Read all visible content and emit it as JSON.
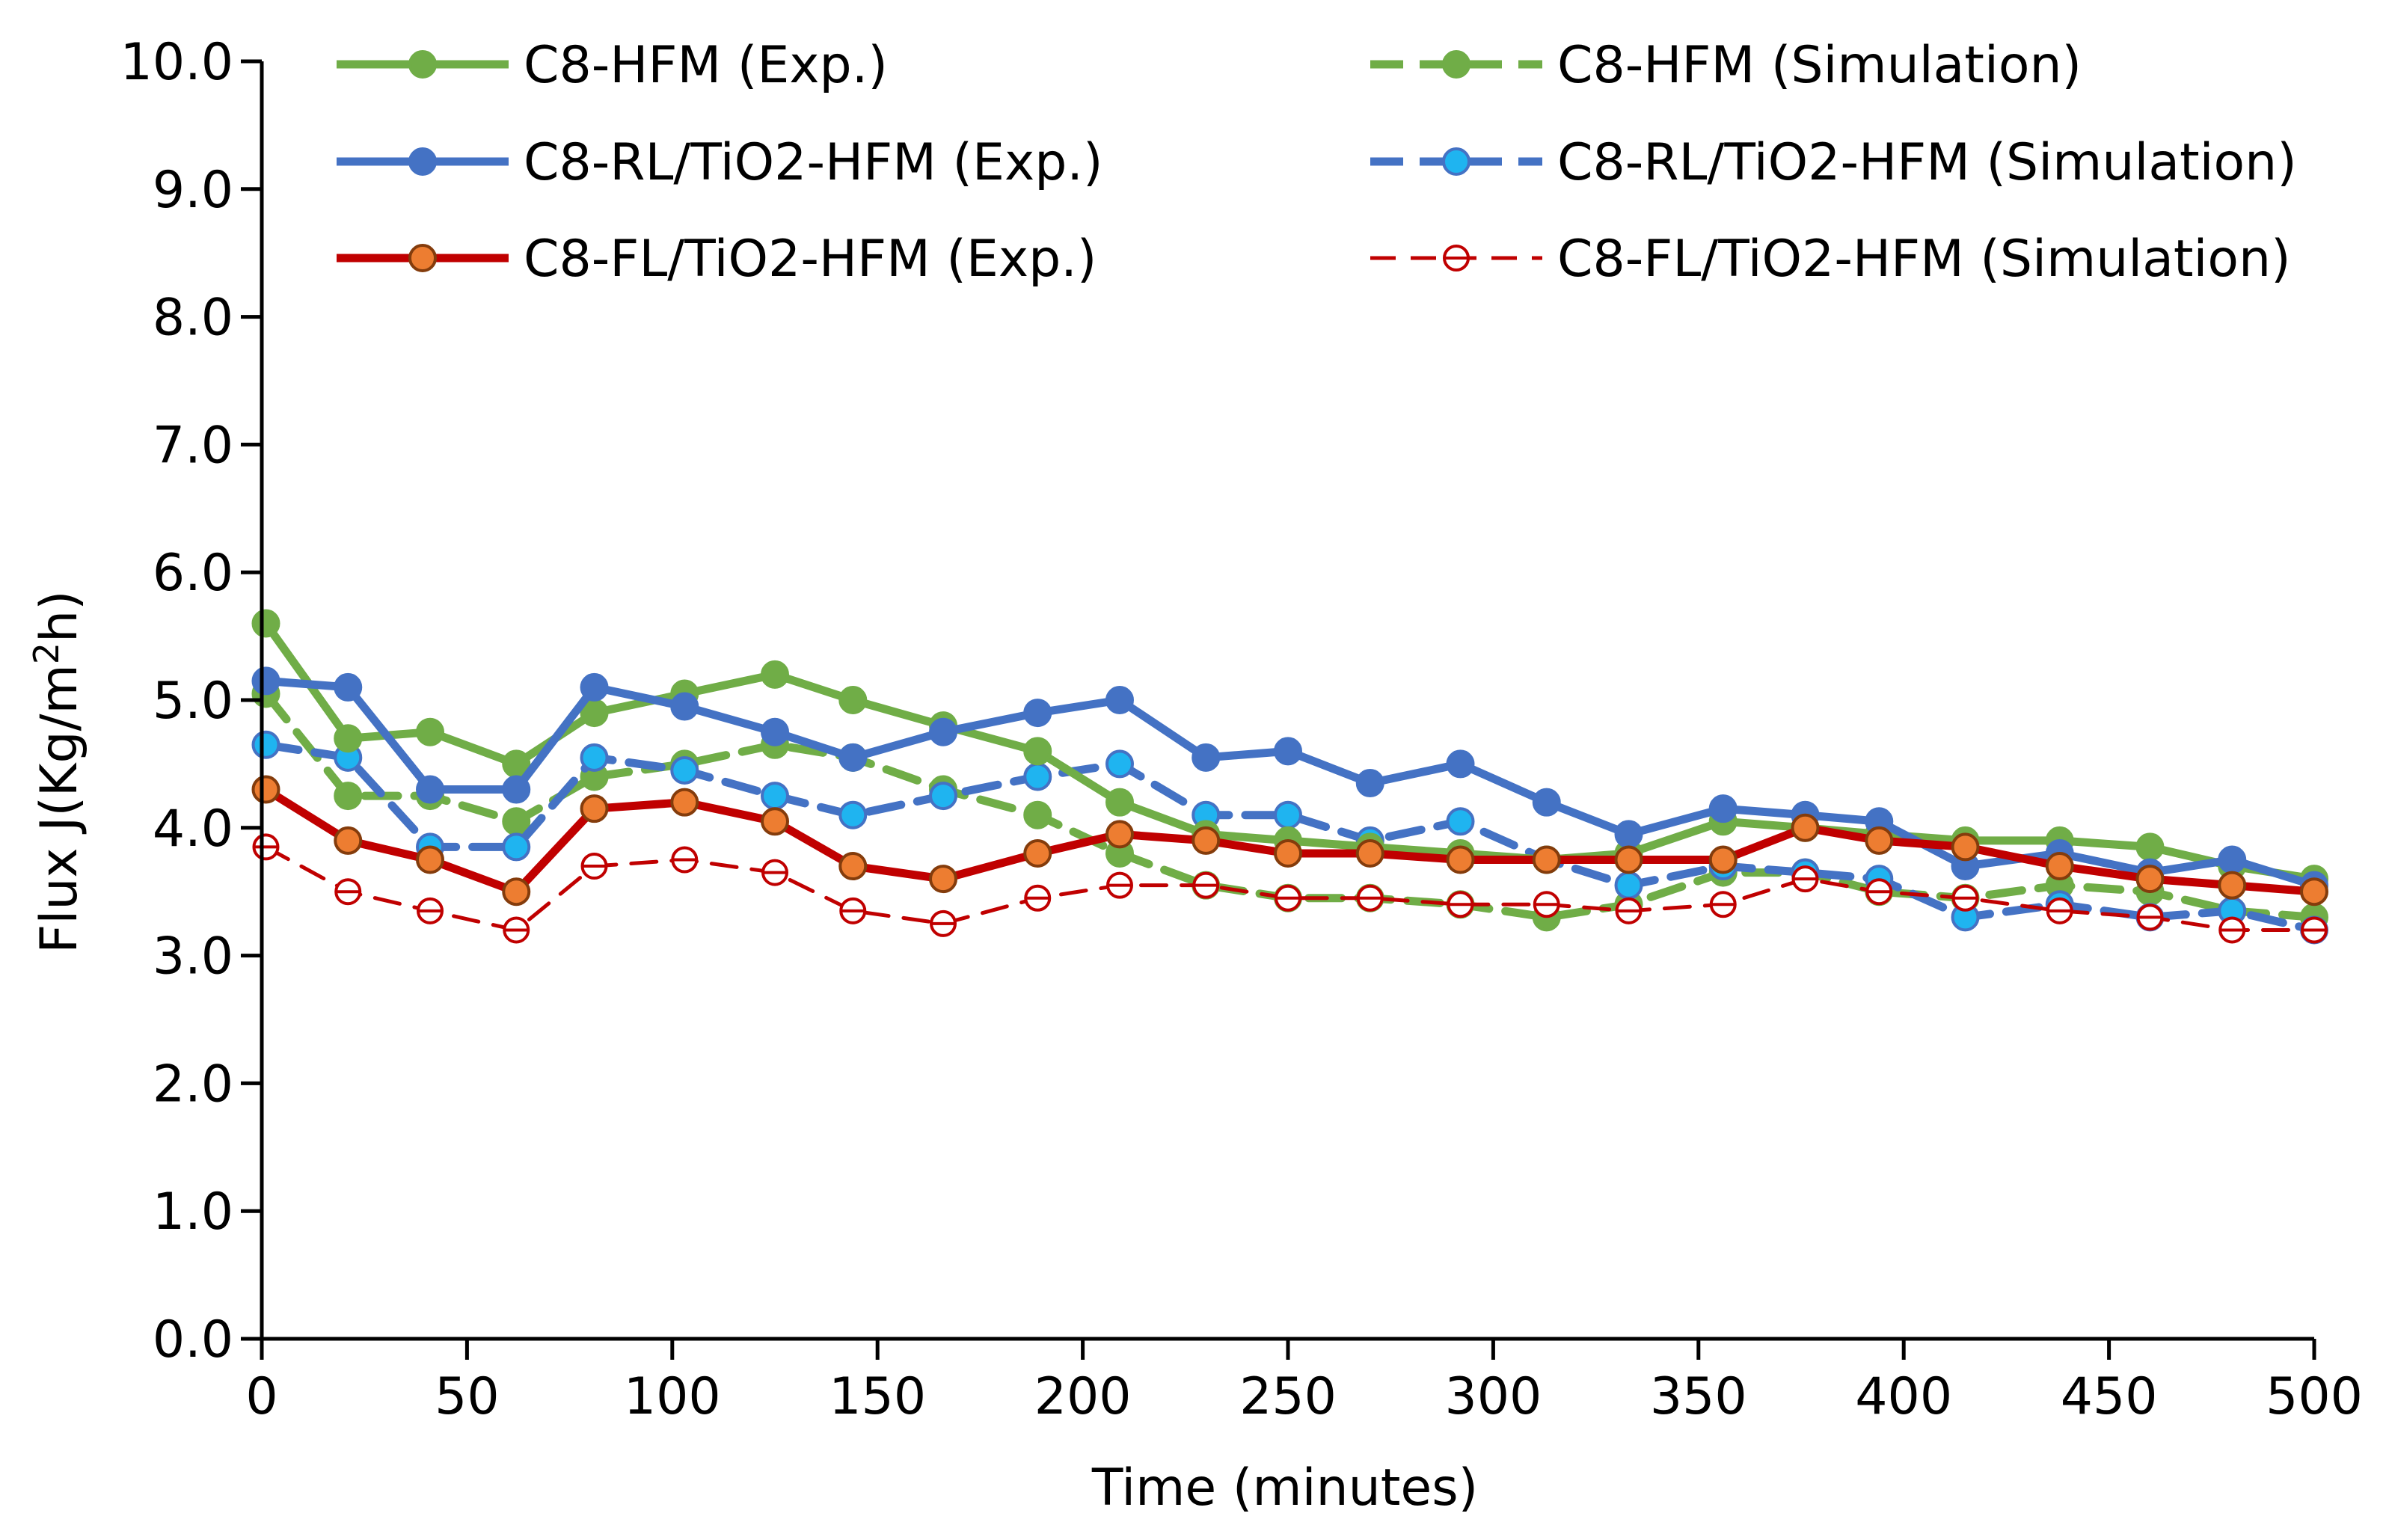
{
  "chart_data": {
    "type": "line",
    "title": "",
    "xlabel": "Time (minutes)",
    "ylabel": "Flux J(Kg/m²h)",
    "ylabel_base": "Flux J(Kg/m",
    "ylabel_sup": "2",
    "ylabel_end": "h)",
    "xlim": [
      0,
      500
    ],
    "ylim": [
      0,
      10
    ],
    "xticks": [
      "0",
      "50",
      "100",
      "150",
      "200",
      "250",
      "300",
      "350",
      "400",
      "450",
      "500"
    ],
    "yticks": [
      "0.0",
      "1.0",
      "2.0",
      "3.0",
      "4.0",
      "5.0",
      "6.0",
      "7.0",
      "8.0",
      "9.0",
      "10.0"
    ],
    "grid": false,
    "legend_position": "top",
    "x": [
      1,
      21,
      41,
      62,
      81,
      103,
      125,
      144,
      166,
      189,
      209,
      230,
      250,
      270,
      292,
      313,
      333,
      356,
      376,
      394,
      415,
      438,
      460,
      480,
      500
    ],
    "series": [
      {
        "name": "C8-HFM (Exp.)",
        "color": "#70ad47",
        "dash": "solid",
        "marker_fill": "#70ad47",
        "values": [
          5.6,
          4.7,
          4.75,
          4.5,
          4.9,
          5.05,
          5.2,
          5.0,
          4.8,
          4.6,
          4.2,
          3.95,
          3.9,
          3.85,
          3.8,
          3.75,
          3.8,
          4.05,
          4.0,
          3.95,
          3.9,
          3.9,
          3.85,
          3.7,
          3.6
        ]
      },
      {
        "name": "C8-HFM (Simulation)",
        "color": "#70ad47",
        "dash": "dashed",
        "marker_fill": "#70ad47",
        "values": [
          5.05,
          4.25,
          4.25,
          4.05,
          4.4,
          4.5,
          4.65,
          4.55,
          4.3,
          4.1,
          3.8,
          3.55,
          3.45,
          3.45,
          3.4,
          3.3,
          3.4,
          3.65,
          3.65,
          3.5,
          3.45,
          3.55,
          3.5,
          3.35,
          3.3
        ]
      },
      {
        "name": "C8-RL/TiO2-HFM (Exp.)",
        "color": "#4472c4",
        "dash": "solid",
        "marker_fill": "#4472c4",
        "values": [
          5.15,
          5.1,
          4.3,
          4.3,
          5.1,
          4.95,
          4.75,
          4.55,
          4.75,
          4.9,
          5.0,
          4.55,
          4.6,
          4.35,
          4.5,
          4.2,
          3.95,
          4.15,
          4.1,
          4.05,
          3.7,
          3.8,
          3.65,
          3.75,
          3.55
        ]
      },
      {
        "name": "C8-RL/TiO2-HFM (Simulation)",
        "color": "#4472c4",
        "dash": "dashed",
        "marker_fill": "#1fb4f0",
        "values": [
          4.65,
          4.55,
          3.85,
          3.85,
          4.55,
          4.45,
          4.25,
          4.1,
          4.25,
          4.4,
          4.5,
          4.1,
          4.1,
          3.9,
          4.05,
          3.75,
          3.55,
          3.7,
          3.65,
          3.6,
          3.3,
          3.4,
          3.3,
          3.35,
          3.2
        ]
      },
      {
        "name": "C8-FL/TiO2-HFM (Exp.)",
        "color": "#c00000",
        "dash": "solid",
        "marker_fill": "#ed7d31",
        "values": [
          4.3,
          3.9,
          3.75,
          3.5,
          4.15,
          4.2,
          4.05,
          3.7,
          3.6,
          3.8,
          3.95,
          3.9,
          3.8,
          3.8,
          3.75,
          3.75,
          3.75,
          3.75,
          4.0,
          3.9,
          3.85,
          3.7,
          3.6,
          3.55,
          3.5
        ]
      },
      {
        "name": "C8-FL/TiO2-HFM (Simulation)",
        "color": "#c00000",
        "dash": "dashed-open",
        "marker_fill": "#ffffff",
        "values": [
          3.85,
          3.5,
          3.35,
          3.2,
          3.7,
          3.75,
          3.65,
          3.35,
          3.25,
          3.45,
          3.55,
          3.55,
          3.45,
          3.45,
          3.4,
          3.4,
          3.35,
          3.4,
          3.6,
          3.5,
          3.45,
          3.35,
          3.3,
          3.2,
          3.2
        ]
      }
    ]
  }
}
